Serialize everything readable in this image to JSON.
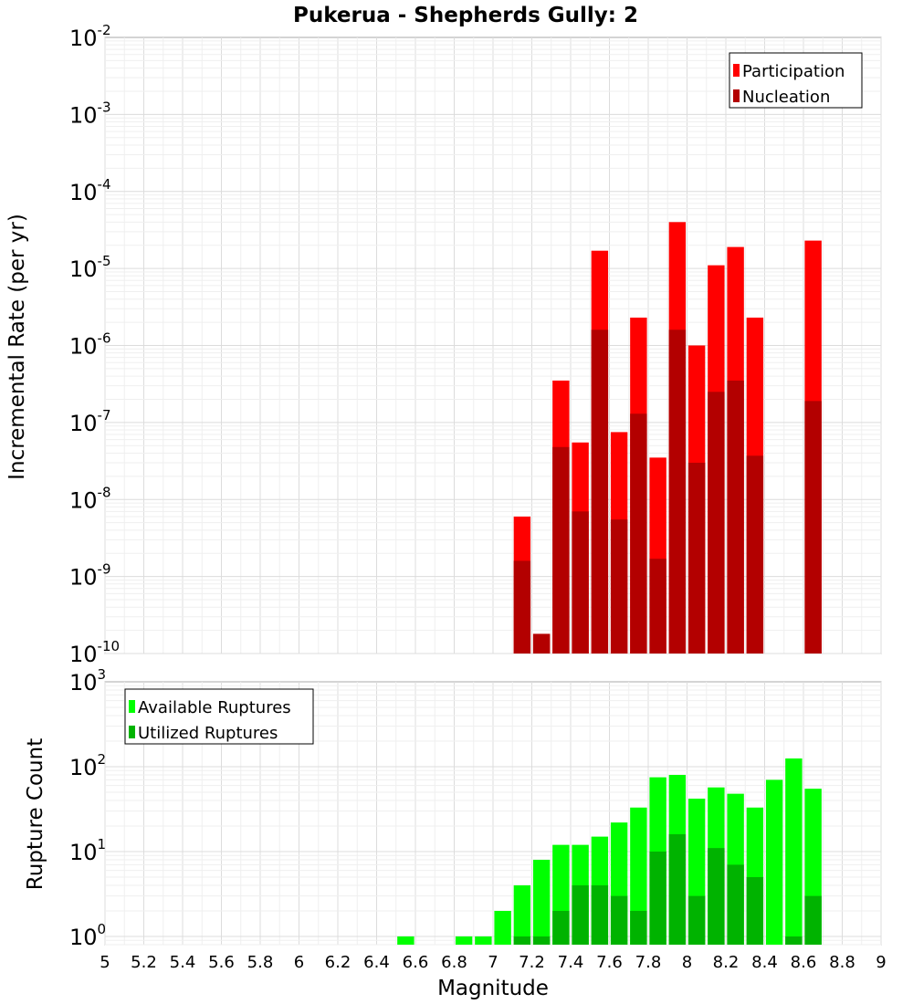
{
  "chart_data": [
    {
      "type": "bar",
      "title": "Pukerua - Shepherds Gully: 2",
      "xlabel": "Magnitude",
      "ylabel": "Incremental Rate (per yr)",
      "y_scale": "log",
      "ylim": [
        1e-10,
        0.01
      ],
      "xlim": [
        5,
        9
      ],
      "x_ticks": [
        "5",
        "5.2",
        "5.4",
        "5.6",
        "5.8",
        "6",
        "6.2",
        "6.4",
        "6.6",
        "6.8",
        "7",
        "7.2",
        "7.4",
        "7.6",
        "7.8",
        "8",
        "8.2",
        "8.4",
        "8.6",
        "8.8",
        "9"
      ],
      "y_tick_exponents": [
        "-10",
        "-9",
        "-8",
        "-7",
        "-6",
        "-5",
        "-4",
        "-3",
        "-2"
      ],
      "legend_position": "top-right",
      "x": [
        7.15,
        7.25,
        7.35,
        7.45,
        7.55,
        7.65,
        7.75,
        7.85,
        7.95,
        8.05,
        8.15,
        8.25,
        8.35,
        8.65
      ],
      "series": [
        {
          "name": "Participation",
          "color": "#ff0000",
          "values": [
            6e-09,
            1.8e-10,
            3.5e-07,
            5.5e-08,
            1.7e-05,
            7.5e-08,
            2.3e-06,
            3.5e-08,
            4e-05,
            1e-06,
            1.1e-05,
            1.9e-05,
            2.3e-06,
            2.3e-05
          ]
        },
        {
          "name": "Nucleation",
          "color": "#b30000",
          "values": [
            1.6e-09,
            1.8e-10,
            4.8e-08,
            7e-09,
            1.6e-06,
            5.5e-09,
            1.3e-07,
            1.7e-09,
            1.6e-06,
            3e-08,
            2.5e-07,
            3.5e-07,
            3.7e-08,
            1.9e-07
          ]
        }
      ]
    },
    {
      "type": "bar",
      "xlabel": "Magnitude",
      "ylabel": "Rupture Count",
      "y_scale": "log",
      "ylim": [
        0.8,
        1000
      ],
      "xlim": [
        5,
        9
      ],
      "y_tick_exponents": [
        "0",
        "1",
        "2",
        "3"
      ],
      "legend_position": "top-left",
      "x": [
        6.55,
        6.85,
        6.95,
        7.05,
        7.15,
        7.25,
        7.35,
        7.45,
        7.55,
        7.65,
        7.75,
        7.85,
        7.95,
        8.05,
        8.15,
        8.25,
        8.35,
        8.45,
        8.55,
        8.65
      ],
      "series": [
        {
          "name": "Available Ruptures",
          "color": "#00ff00",
          "values": [
            1,
            1,
            1,
            2,
            4,
            8,
            12,
            12,
            15,
            22,
            33,
            75,
            80,
            42,
            57,
            48,
            33,
            70,
            125,
            55
          ]
        },
        {
          "name": "Utilized Ruptures",
          "color": "#00b300",
          "values": [
            0,
            0,
            0,
            0,
            1,
            1,
            2,
            4,
            4,
            3,
            2,
            10,
            16,
            3,
            11,
            7,
            5,
            0,
            1,
            3
          ]
        }
      ]
    }
  ]
}
